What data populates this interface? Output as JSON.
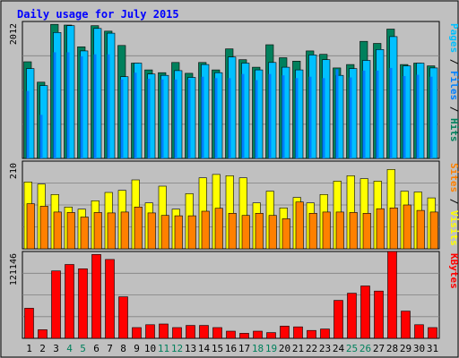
{
  "colors": {
    "background": "#C0C0C0",
    "title": "#0000FF",
    "hits": "#00805C",
    "files": "#0080FF",
    "pages": "#00C0FF",
    "visits": "#FFFF00",
    "sites": "#FF8000",
    "kbytes": "#FF0000",
    "weekend_day": "#00805C",
    "weekday": "#000000",
    "grid": "#808080"
  },
  "chart_data": {
    "type": "bar",
    "title": "Daily usage for July 2015",
    "categories": [
      "1",
      "2",
      "3",
      "4",
      "5",
      "6",
      "7",
      "8",
      "9",
      "10",
      "11",
      "12",
      "13",
      "14",
      "15",
      "16",
      "17",
      "18",
      "19",
      "20",
      "21",
      "22",
      "23",
      "24",
      "25",
      "26",
      "27",
      "28",
      "29",
      "30",
      "31"
    ],
    "weekend_days": [
      "4",
      "5",
      "11",
      "12",
      "18",
      "19",
      "25",
      "26"
    ],
    "panels": [
      {
        "name": "hits-files-pages",
        "ymax_label": "2012",
        "ylim": [
          0,
          2012
        ],
        "legend": [
          "Pages",
          "Files",
          "Hits"
        ],
        "series": [
          {
            "name": "Hits",
            "values": [
              1420,
              1120,
              1970,
              1960,
              1640,
              1950,
              1870,
              1660,
              1400,
              1300,
              1260,
              1410,
              1250,
              1410,
              1300,
              1610,
              1450,
              1340,
              1670,
              1480,
              1430,
              1580,
              1530,
              1330,
              1380,
              1720,
              1690,
              1900,
              1380,
              1400,
              1360
            ]
          },
          {
            "name": "Files",
            "values": [
              990,
              640,
              1560,
              1560,
              1500,
              1530,
              1530,
              1160,
              1260,
              1170,
              1160,
              1160,
              1160,
              1200,
              1180,
              1180,
              1240,
              1150,
              1240,
              1220,
              1180,
              1200,
              1180,
              1310,
              1190,
              1290,
              1290,
              1330,
              1210,
              1230,
              1200
            ]
          },
          {
            "name": "Pages",
            "values": [
              1320,
              1070,
              1850,
              1950,
              1580,
              1910,
              1840,
              1200,
              1400,
              1240,
              1220,
              1290,
              1190,
              1380,
              1260,
              1490,
              1400,
              1300,
              1410,
              1340,
              1300,
              1520,
              1450,
              1220,
              1320,
              1440,
              1600,
              1790,
              1360,
              1400,
              1330
            ]
          }
        ]
      },
      {
        "name": "visits-sites",
        "ymax_label": "210",
        "ylim": [
          0,
          210
        ],
        "legend": [
          "Sites",
          "Visits"
        ],
        "series": [
          {
            "name": "Visits",
            "values": [
              160,
              155,
              130,
              100,
              95,
              115,
              135,
              140,
              165,
              110,
              150,
              95,
              132,
              170,
              178,
              175,
              170,
              110,
              138,
              98,
              123,
              110,
              130,
              162,
              175,
              168,
              162,
              190,
              138,
              136,
              122
            ]
          },
          {
            "name": "Sites",
            "values": [
              108,
              102,
              88,
              87,
              76,
              87,
              86,
              88,
              100,
              86,
              80,
              79,
              79,
              90,
              97,
              85,
              80,
              85,
              80,
              72,
              112,
              85,
              88,
              88,
              87,
              85,
              96,
              98,
              105,
              92,
              88
            ]
          }
        ]
      },
      {
        "name": "kbytes",
        "ymax_label": "121146",
        "ylim": [
          0,
          121146
        ],
        "legend": [
          "KBytes"
        ],
        "series": [
          {
            "name": "KBytes",
            "values": [
              42000,
              12000,
              94000,
              103000,
              97000,
              117000,
              110000,
              58000,
              15000,
              19000,
              20000,
              15000,
              18000,
              18000,
              15000,
              10000,
              7000,
              10000,
              8000,
              17000,
              16000,
              11000,
              13000,
              53000,
              63000,
              73000,
              66000,
              121146,
              38000,
              19000,
              15000
            ]
          }
        ]
      }
    ]
  }
}
